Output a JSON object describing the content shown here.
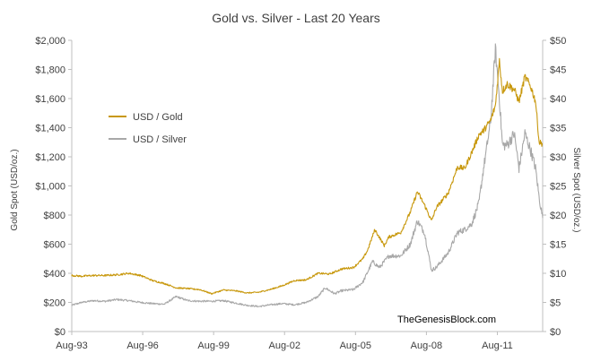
{
  "chart_data": {
    "type": "line",
    "title": "Gold vs. Silver - Last 20 Years",
    "xlabel": "",
    "ylabel_left": "Gold Spot (USD/oz.)",
    "ylabel_right": "Silver Spot (USD/oz.)",
    "x_ticks": [
      "Aug-93",
      "Aug-96",
      "Aug-99",
      "Aug-02",
      "Aug-05",
      "Aug-08",
      "Aug-11"
    ],
    "x_range": [
      1993.583,
      2013.5
    ],
    "y_left": {
      "range": [
        0,
        2000
      ],
      "ticks": [
        "$0",
        "$200",
        "$400",
        "$600",
        "$800",
        "$1,000",
        "$1,200",
        "$1,400",
        "$1,600",
        "$1,800",
        "$2,000"
      ]
    },
    "y_right": {
      "range": [
        0,
        50
      ],
      "ticks": [
        "$0",
        "$5",
        "$10",
        "$15",
        "$20",
        "$25",
        "$30",
        "$35",
        "$40",
        "$45",
        "$50"
      ]
    },
    "legend_position": "upper-left",
    "watermark": "TheGenesisBlock.com",
    "colors": {
      "gold": "#c8980d",
      "silver": "#a8a8a8",
      "axis": "#bfbfbf",
      "text": "#404040"
    },
    "series": [
      {
        "name": "USD / Gold",
        "axis": "left",
        "x": [
          1993.58,
          1994.0,
          1994.5,
          1995.0,
          1995.5,
          1996.0,
          1996.5,
          1997.0,
          1997.5,
          1998.0,
          1998.5,
          1999.0,
          1999.5,
          2000.0,
          2000.5,
          2001.0,
          2001.5,
          2002.0,
          2002.5,
          2003.0,
          2003.5,
          2004.0,
          2004.5,
          2005.0,
          2005.5,
          2005.9,
          2006.1,
          2006.4,
          2006.8,
          2007.0,
          2007.5,
          2007.9,
          2008.2,
          2008.5,
          2008.8,
          2009.0,
          2009.5,
          2009.9,
          2010.2,
          2010.5,
          2010.8,
          2011.0,
          2011.3,
          2011.5,
          2011.67,
          2011.8,
          2012.0,
          2012.3,
          2012.5,
          2012.75,
          2013.0,
          2013.2,
          2013.35,
          2013.5
        ],
        "values": [
          385,
          380,
          385,
          385,
          390,
          400,
          385,
          350,
          330,
          300,
          295,
          288,
          260,
          285,
          280,
          265,
          270,
          290,
          315,
          350,
          355,
          400,
          395,
          430,
          440,
          500,
          560,
          700,
          590,
          650,
          680,
          820,
          960,
          870,
          760,
          850,
          950,
          1130,
          1120,
          1230,
          1350,
          1380,
          1450,
          1550,
          1860,
          1650,
          1700,
          1660,
          1580,
          1750,
          1680,
          1580,
          1300,
          1290
        ]
      },
      {
        "name": "USD / Silver",
        "axis": "right",
        "x": [
          1993.58,
          1994.0,
          1994.5,
          1995.0,
          1995.5,
          1996.0,
          1996.5,
          1997.0,
          1997.5,
          1998.0,
          1998.5,
          1999.0,
          1999.5,
          2000.0,
          2000.5,
          2001.0,
          2001.5,
          2002.0,
          2002.5,
          2003.0,
          2003.5,
          2004.0,
          2004.3,
          2004.7,
          2005.0,
          2005.5,
          2005.9,
          2006.3,
          2006.6,
          2007.0,
          2007.5,
          2007.9,
          2008.2,
          2008.5,
          2008.8,
          2009.0,
          2009.5,
          2009.9,
          2010.2,
          2010.5,
          2010.8,
          2011.0,
          2011.3,
          2011.5,
          2011.67,
          2011.8,
          2012.0,
          2012.3,
          2012.5,
          2012.75,
          2013.0,
          2013.2,
          2013.35,
          2013.5
        ],
        "values": [
          4.5,
          5.0,
          5.3,
          5.2,
          5.5,
          5.3,
          5.0,
          4.8,
          4.7,
          6.0,
          5.3,
          5.2,
          5.2,
          5.3,
          4.9,
          4.5,
          4.3,
          4.6,
          4.8,
          4.6,
          5.0,
          6.0,
          7.5,
          6.5,
          7.0,
          7.2,
          8.5,
          12.0,
          11.0,
          13.0,
          13.0,
          15.0,
          19.0,
          17.0,
          10.5,
          11.0,
          13.5,
          17.0,
          17.5,
          18.5,
          22.0,
          28.0,
          36.0,
          48.5,
          40.0,
          32.0,
          32.0,
          34.0,
          28.0,
          34.0,
          31.0,
          28.0,
          23.0,
          19.5
        ]
      }
    ]
  }
}
